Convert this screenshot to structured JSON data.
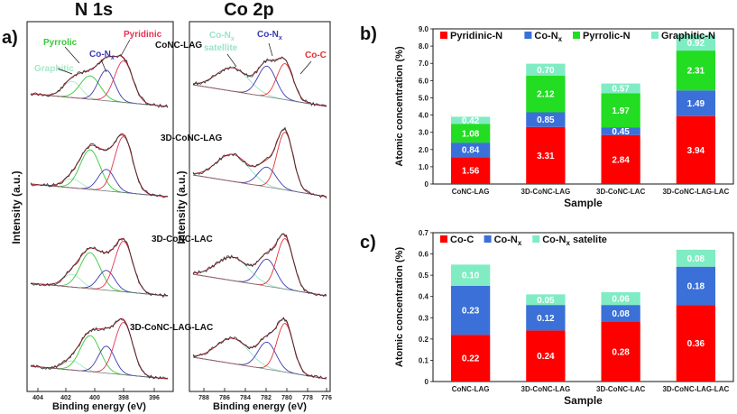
{
  "panels": {
    "a_label": "a)",
    "b_label": "b)",
    "c_label": "c)"
  },
  "spectra": {
    "n1s_title": "N 1s",
    "co2p_title": "Co 2p",
    "ylabel": "Intensity (a.u.)",
    "xlabel": "Binding energy (eV)",
    "n1s_ticks": [
      "404",
      "402",
      "400",
      "398",
      "396"
    ],
    "co2p_ticks": [
      "788",
      "786",
      "784",
      "782",
      "780",
      "778",
      "776"
    ],
    "samples": [
      "CoNC-LAG",
      "3D-CoNC-LAG",
      "3D-CoNC-LAC",
      "3D-CoNC-LAG-LAC"
    ],
    "n1s_peaks": {
      "pyrrolic": "Pyrrolic",
      "graphitic": "Graphitic",
      "con": "Co-N",
      "con_sub": "x",
      "pyridinic": "Pyridinic"
    },
    "co2p_peaks": {
      "satellite_line1": "Co-N",
      "satellite_sub": "x",
      "satellite_line2": "satellite",
      "con": "Co-N",
      "con_sub": "x",
      "coc": "Co-C"
    },
    "colors": {
      "pyrrolic": "#38c838",
      "graphitic": "#a8e8c8",
      "con": "#3a3ab0",
      "pyridinic": "#e83050",
      "coc": "#e83030",
      "envelope": "#c83040",
      "raw": "#303030"
    }
  },
  "chart_data": [
    {
      "type": "bar",
      "stacked": true,
      "panel": "b)",
      "title": "",
      "xlabel": "Sample",
      "ylabel": "Atomic concentration (%)",
      "ylim": [
        0,
        9.0
      ],
      "yticks": [
        "0",
        "1.0",
        "2.0",
        "3.0",
        "4.0",
        "5.0",
        "6.0",
        "7.0",
        "8.0",
        "9.0"
      ],
      "categories": [
        "CoNC-LAG",
        "3D-CoNC-LAG",
        "3D-CoNC-LAC",
        "3D-CoNC-LAG-LAC"
      ],
      "series": [
        {
          "name": "Pyridinic-N",
          "color": "#ff0000",
          "values": [
            1.56,
            3.31,
            2.84,
            3.94
          ],
          "labels": [
            "1.56",
            "3.31",
            "2.84",
            "3.94"
          ]
        },
        {
          "name": "Co-N",
          "name_sub": "x",
          "color": "#3a70d8",
          "values": [
            0.84,
            0.85,
            0.45,
            1.49
          ],
          "labels": [
            "0.84",
            "0.85",
            "0.45",
            "1.49"
          ]
        },
        {
          "name": "Pyrrolic-N",
          "color": "#22dd22",
          "values": [
            1.08,
            2.12,
            1.97,
            2.31
          ],
          "labels": [
            "1.08",
            "2.12",
            "1.97",
            "2.31"
          ]
        },
        {
          "name": "Graphitic-N",
          "color": "#7fecc4",
          "values": [
            0.42,
            0.7,
            0.57,
            0.92
          ],
          "labels": [
            "0.42",
            "0.70",
            "0.57",
            "0.92"
          ]
        }
      ],
      "legend": "top"
    },
    {
      "type": "bar",
      "stacked": true,
      "panel": "c)",
      "title": "",
      "xlabel": "Sample",
      "ylabel": "Atomic concentration (%)",
      "ylim": [
        0,
        0.7
      ],
      "yticks": [
        "0",
        "0.1",
        "0.2",
        "0.3",
        "0.4",
        "0.5",
        "0.6",
        "0.7"
      ],
      "categories": [
        "CoNC-LAG",
        "3D-CoNC-LAG",
        "3D-CoNC-LAC",
        "3D-CoNC-LAG-LAC"
      ],
      "series": [
        {
          "name": "Co-C",
          "color": "#ff0000",
          "values": [
            0.22,
            0.24,
            0.28,
            0.36
          ],
          "labels": [
            "0.22",
            "0.24",
            "0.28",
            "0.36"
          ]
        },
        {
          "name": "Co-N",
          "name_sub": "x",
          "color": "#3a70d8",
          "values": [
            0.23,
            0.12,
            0.08,
            0.18
          ],
          "labels": [
            "0.23",
            "0.12",
            "0.08",
            "0.18"
          ]
        },
        {
          "name": "Co-N",
          "name_sub": "x",
          "name_suffix": " satelite",
          "color": "#7fecc4",
          "values": [
            0.1,
            0.05,
            0.06,
            0.08
          ],
          "labels": [
            "0.10",
            "0.05",
            "0.06",
            "0.08"
          ]
        }
      ],
      "legend": "top"
    }
  ]
}
